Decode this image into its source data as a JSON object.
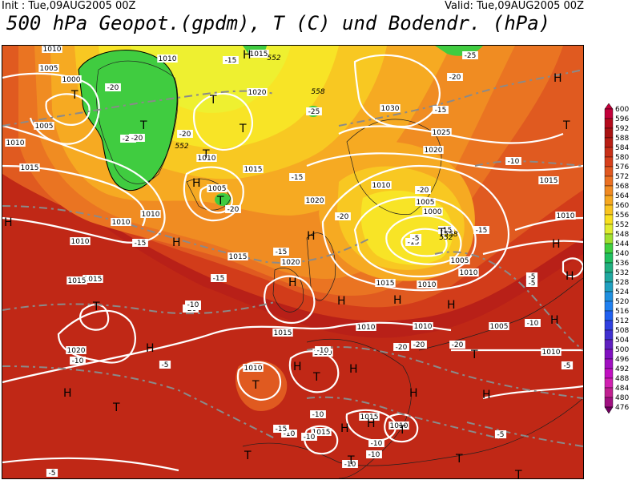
{
  "header": {
    "init": "Init : Tue,09AUG2005 00Z",
    "valid": "Valid: Tue,09AUG2005 00Z",
    "title": "500 hPa Geopot.(gpdm), T (C) und Bodendr. (hPa)"
  },
  "legend": {
    "values": [
      "600",
      "596",
      "592",
      "588",
      "584",
      "580",
      "576",
      "572",
      "568",
      "564",
      "560",
      "556",
      "552",
      "548",
      "544",
      "540",
      "536",
      "532",
      "528",
      "524",
      "520",
      "516",
      "512",
      "508",
      "504",
      "500",
      "496",
      "492",
      "488",
      "484",
      "480",
      "476"
    ],
    "colors": [
      "#c2003a",
      "#b30a1c",
      "#a81212",
      "#b81e14",
      "#c83018",
      "#d6401c",
      "#e05820",
      "#ea7022",
      "#f08a22",
      "#f5a820",
      "#f8c420",
      "#f8e020",
      "#e0ec30",
      "#a0e030",
      "#40d040",
      "#20c060",
      "#20b080",
      "#20a8a0",
      "#20a0c0",
      "#2090e0",
      "#2080f0",
      "#2060f0",
      "#3040e0",
      "#4030d0",
      "#6020c0",
      "#8010c0",
      "#a010c0",
      "#c010c0",
      "#d020b0",
      "#c02090",
      "#a01080",
      "#700060"
    ]
  },
  "map": {
    "pressure_labels": [
      "1010",
      "1005",
      "1000",
      "1010",
      "1015",
      "1010",
      "1005",
      "1015",
      "1010",
      "1010",
      "1010",
      "1020",
      "1010",
      "1005",
      "1015",
      "1020",
      "1015",
      "1030",
      "1025",
      "1020",
      "1010",
      "1005",
      "1000",
      "1010",
      "1005",
      "1010",
      "1015",
      "1015",
      "1020",
      "1015",
      "1015",
      "1010",
      "1015",
      "1010",
      "1020",
      "1010",
      "1010",
      "1015",
      "1015",
      "1010",
      "1010",
      "1005",
      "1010"
    ],
    "temp_labels": [
      "-15",
      "-20",
      "-20",
      "-20",
      "-25",
      "-20",
      "-25",
      "-20",
      "-15",
      "-20",
      "-15",
      "-20",
      "-10",
      "-15",
      "-20",
      "-15",
      "-15",
      "-15",
      "-10",
      "-20",
      "-15",
      "-10",
      "-10",
      "-10",
      "-5",
      "-5",
      "-10",
      "-10",
      "-5",
      "-10",
      "-10",
      "-5",
      "-5",
      "-10",
      "-15",
      "-10",
      "-10",
      "-5",
      "-20",
      "-15",
      "-20",
      "-5",
      "-20"
    ],
    "geopot_labels": [
      "552",
      "558",
      "552",
      "552",
      "558"
    ],
    "highs": [
      "H",
      "H",
      "H",
      "H",
      "H",
      "H",
      "H",
      "H",
      "H",
      "H",
      "H",
      "H",
      "H",
      "H",
      "H",
      "H",
      "H",
      "H",
      "H",
      "H",
      "H"
    ],
    "lows": [
      "T",
      "T",
      "T",
      "T",
      "T",
      "T",
      "T",
      "T",
      "T",
      "T",
      "T",
      "T",
      "T",
      "T",
      "T",
      "T",
      "T",
      "T"
    ]
  }
}
